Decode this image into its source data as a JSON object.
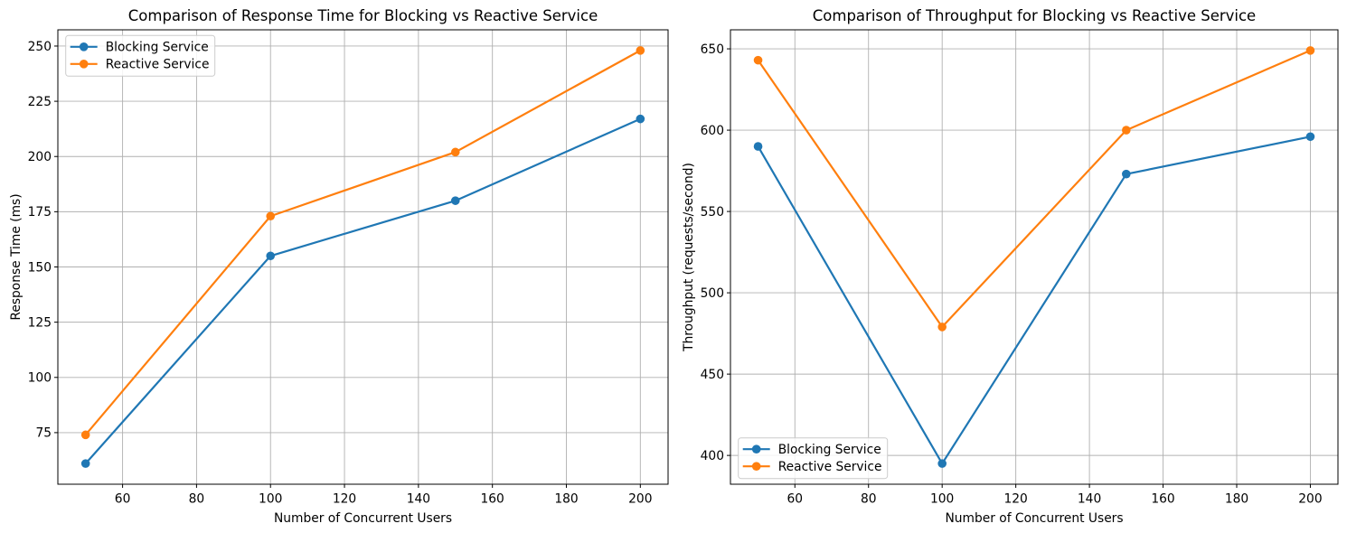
{
  "figure": {
    "background": "#ffffff",
    "grid_color": "#b0b0b0",
    "spine_color": "#000000",
    "legend_border_color": "#cccccc"
  },
  "chart_data": [
    {
      "type": "line",
      "title": "Comparison of Response Time for Blocking vs Reactive Service",
      "xlabel": "Number of Concurrent Users",
      "ylabel": "Response Time (ms)",
      "x": [
        50,
        100,
        150,
        200
      ],
      "series": [
        {
          "name": "Blocking Service",
          "color": "#1f77b4",
          "values": [
            61,
            155,
            180,
            217
          ]
        },
        {
          "name": "Reactive Service",
          "color": "#ff7f0e",
          "values": [
            74,
            173,
            202,
            248
          ]
        }
      ],
      "xlim": [
        42.5,
        207.5
      ],
      "ylim": [
        51.65,
        257.35
      ],
      "xticks": [
        60,
        80,
        100,
        120,
        140,
        160,
        180,
        200
      ],
      "yticks": [
        75,
        100,
        125,
        150,
        175,
        200,
        225,
        250
      ],
      "grid": true,
      "legend_position": "upper-left",
      "marker": "circle"
    },
    {
      "type": "line",
      "title": "Comparison of Throughput for Blocking vs Reactive Service",
      "xlabel": "Number of Concurrent Users",
      "ylabel": "Throughput (requests/second)",
      "x": [
        50,
        100,
        150,
        200
      ],
      "series": [
        {
          "name": "Blocking Service",
          "color": "#1f77b4",
          "values": [
            590,
            395,
            573,
            596
          ]
        },
        {
          "name": "Reactive Service",
          "color": "#ff7f0e",
          "values": [
            643,
            479,
            600,
            649
          ]
        }
      ],
      "xlim": [
        42.5,
        207.5
      ],
      "ylim": [
        382.3,
        661.7
      ],
      "xticks": [
        60,
        80,
        100,
        120,
        140,
        160,
        180,
        200
      ],
      "yticks": [
        400,
        450,
        500,
        550,
        600,
        650
      ],
      "grid": true,
      "legend_position": "lower-left",
      "marker": "circle"
    }
  ]
}
